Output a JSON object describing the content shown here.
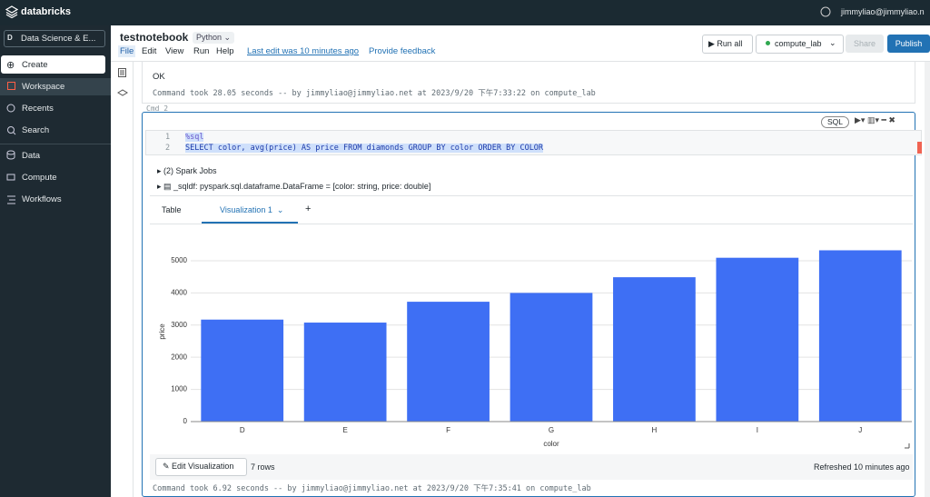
{
  "topbar": {
    "brand": "databricks",
    "user": "jimmyliao@jimmyliao.n"
  },
  "sidebar": {
    "workspace_selector": "Data Science & E...",
    "items": [
      "Create",
      "Workspace",
      "Recents",
      "Search",
      "Data",
      "Compute",
      "Workflows"
    ]
  },
  "notebook": {
    "title": "testnotebook",
    "language": "Python",
    "menu": [
      "File",
      "Edit",
      "View",
      "Run",
      "Help"
    ],
    "last_edit": "Last edit was 10 minutes ago",
    "feedback": "Provide feedback",
    "run_all": "Run all",
    "cluster": "compute_lab",
    "share": "Share",
    "publish": "Publish"
  },
  "cell1": {
    "output": "OK",
    "command": "Command took 28.05 seconds -- by jimmyliao@jimmyliao.net at 2023/9/20 下午7:33:22 on compute_lab"
  },
  "cell2": {
    "label": "Cmd 2",
    "lang_badge": "SQL",
    "code": [
      {
        "line": "1",
        "text": "%sql"
      },
      {
        "line": "2",
        "text": "SELECT color, avg(price) AS price FROM diamonds GROUP BY color ORDER BY COLOR"
      }
    ],
    "spark_jobs": "(2) Spark Jobs",
    "sqldf": "_sqldf:  pyspark.sql.dataframe.DataFrame = [color: string, price: double]",
    "tabs": [
      "Table",
      "Visualization 1"
    ],
    "edit_viz": "Edit Visualization",
    "rows": "7 rows",
    "refreshed": "Refreshed 10 minutes ago",
    "command": "Command took 6.92 seconds -- by jimmyliao@jimmyliao.net at 2023/9/20 下午7:35:41 on compute_lab"
  },
  "chart_data": {
    "type": "bar",
    "categories": [
      "D",
      "E",
      "F",
      "G",
      "H",
      "I",
      "J"
    ],
    "values": [
      3170,
      3077,
      3725,
      3999,
      4487,
      5092,
      5324
    ],
    "color": "#3e6ff4",
    "x_label": "color",
    "y_label": "price",
    "ylim": [
      0,
      6100
    ],
    "yticks": [
      0,
      1000,
      2000,
      3000,
      4000,
      5000
    ],
    "grid": true
  }
}
